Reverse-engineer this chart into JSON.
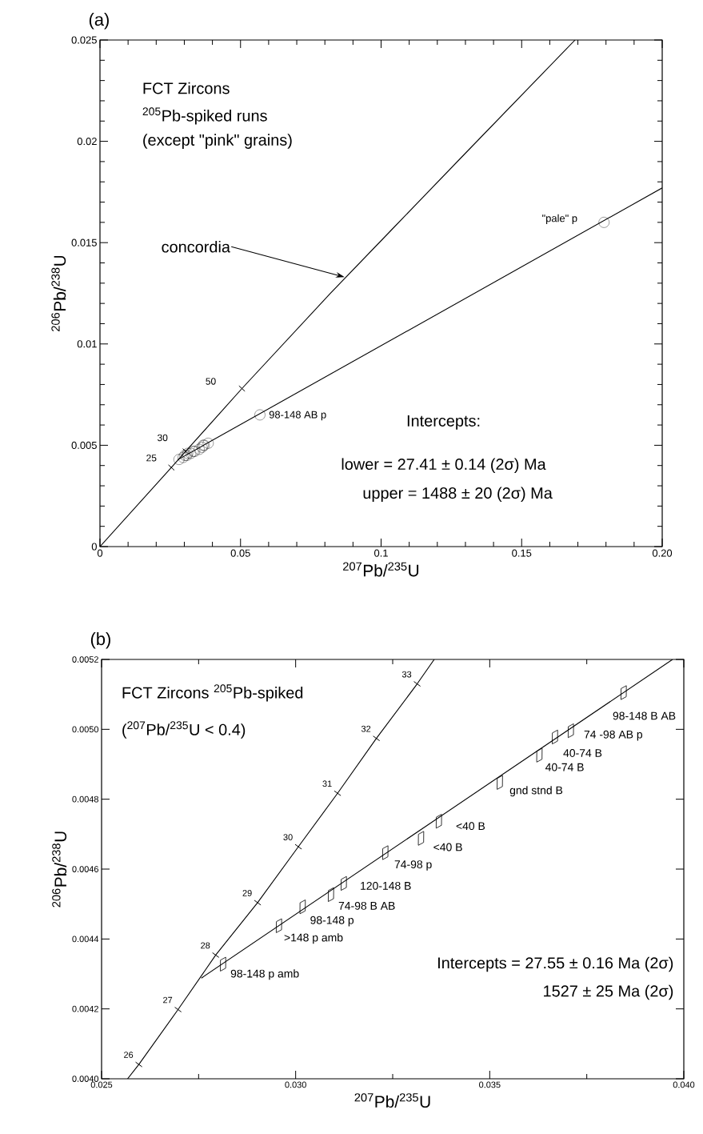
{
  "chart_data": [
    {
      "type": "scatter",
      "title": "(a)",
      "xlabel": "$^{207}$Pb/$^{235}$U",
      "ylabel": "$^{206}$Pb/$^{238}$U",
      "xlim": [
        0,
        0.2
      ],
      "ylim": [
        0,
        0.025
      ],
      "xticks": [
        0,
        0.05,
        0.1,
        0.15,
        {
          "value": 0.2,
          "label": "0.20"
        }
      ],
      "yticks": [
        0,
        0.005,
        0.01,
        0.015,
        0.02,
        0.025
      ],
      "series": [
        {
          "type": "line",
          "color": "#000000",
          "x": [
            0,
            0.0254,
            0.0305,
            0.0505,
            0.082,
            0.1035,
            0.1306,
            0.169
          ],
          "values": [
            0,
            0.0039,
            0.0047,
            0.0078,
            0.0125,
            0.0156,
            0.0195,
            0.025
          ]
        },
        {
          "type": "line",
          "color": "#000000",
          "x": [
            0.0276,
            0.2
          ],
          "values": [
            0.00428,
            0.0177
          ]
        },
        {
          "marker": "cross",
          "color": "#000000",
          "x": [
            0.0254,
            0.0305,
            0.0505
          ],
          "values": [
            0.0039,
            0.0047,
            0.0078
          ]
        },
        {
          "marker": "circle",
          "color": "#000000",
          "x": [
            0.0281,
            0.0296,
            0.0302,
            0.0309,
            0.0312,
            0.0323,
            0.0332,
            0.0337,
            0.0353,
            0.0363,
            0.0367,
            0.0371,
            0.0385,
            0.0569,
            0.1793
          ],
          "values": [
            0.0043,
            0.0044,
            0.0045,
            0.0045,
            0.0046,
            0.0046,
            0.0047,
            0.0047,
            0.0048,
            0.0049,
            0.005,
            0.005,
            0.0051,
            0.0065,
            0.016
          ]
        }
      ],
      "annotations": [
        "FCT Zircons",
        "$^{205}$Pb-spiked runs",
        "(except \"pink\" grains)",
        {
          "text": "concordia",
          "x": 0.087,
          "y": 0.0133
        },
        "Intercepts:",
        "lower = 27.41 ± 0.14 (2σ) Ma",
        "upper = 1488 ± 20 (2σ) Ma",
        {
          "text": "25",
          "x": 0.0254,
          "y": 0.0039
        },
        {
          "text": "30",
          "x": 0.0305,
          "y": 0.0047
        },
        {
          "text": "50",
          "x": 0.0505,
          "y": 0.0078
        },
        {
          "text": "98-148 AB p",
          "x": 0.0569,
          "y": 0.0065
        },
        {
          "text": "\"pale\" p",
          "x": 0.1793,
          "y": 0.016
        }
      ]
    },
    {
      "type": "scatter",
      "title": "(b)",
      "xlabel": "$^{207}$Pb/$^{235}$U",
      "ylabel": "$^{206}$Pb/$^{238}$U",
      "xlim": [
        0.025,
        0.04
      ],
      "ylim": [
        0.004,
        0.0052
      ],
      "xticks": [
        0.025,
        {
          "value": 0.03,
          "label": "0.030"
        },
        0.035,
        {
          "value": 0.04,
          "label": "0.040"
        }
      ],
      "yticks": [
        {
          "value": 0.004,
          "label": "0.0040"
        },
        0.0042,
        0.0044,
        0.0046,
        0.0048,
        {
          "value": 0.005,
          "label": "0.0050"
        },
        0.0052
      ],
      "series": [
        {
          "type": "line",
          "color": "#000000",
          "x": [
            0.02567,
            0.02596,
            0.02697,
            0.02794,
            0.02902,
            0.03007,
            0.03108,
            0.03208,
            0.03313,
            0.03357
          ],
          "values": [
            0.004,
            0.004041,
            0.004198,
            0.004354,
            0.004504,
            0.004664,
            0.004817,
            0.004974,
            0.00513,
            0.0052
          ]
        },
        {
          "type": "line",
          "color": "#000000",
          "x": [
            0.02757,
            0.03971
          ],
          "values": [
            0.004288,
            0.0052
          ]
        },
        {
          "marker": "cross",
          "color": "#000000",
          "x": [
            0.02596,
            0.02697,
            0.02794,
            0.02902,
            0.03007,
            0.03108,
            0.03208,
            0.03313
          ],
          "values": [
            0.004041,
            0.004198,
            0.004354,
            0.004504,
            0.004664,
            0.004817,
            0.004974,
            0.00513
          ]
        },
        {
          "marker": "diamond",
          "color": "#000000",
          "x": [
            0.02813,
            0.02957,
            0.03018,
            0.03091,
            0.03124,
            0.03231,
            0.03323,
            0.03369,
            0.03526,
            0.03628,
            0.03668,
            0.03709,
            0.03845
          ],
          "values": [
            0.004328,
            0.004438,
            0.004492,
            0.004527,
            0.004559,
            0.004647,
            0.004688,
            0.004737,
            0.004848,
            0.004926,
            0.004978,
            0.004996,
            0.005105
          ]
        }
      ],
      "annotations": [
        "FCT Zircons  $^{205}$Pb-spiked",
        "($^{207}$Pb/$^{235}$U < 0.4)",
        "Intercepts  =  27.55 ± 0.16 Ma (2σ)",
        "1527 ± 25 Ma (2σ)",
        {
          "text": "26",
          "x": 0.02596,
          "y": 0.004041
        },
        {
          "text": "27",
          "x": 0.02697,
          "y": 0.004198
        },
        {
          "text": "28",
          "x": 0.02794,
          "y": 0.004354
        },
        {
          "text": "29",
          "x": 0.02902,
          "y": 0.004504
        },
        {
          "text": "30",
          "x": 0.03007,
          "y": 0.004664
        },
        {
          "text": "31",
          "x": 0.03108,
          "y": 0.004817
        },
        {
          "text": "32",
          "x": 0.03208,
          "y": 0.004974
        },
        {
          "text": "33",
          "x": 0.03313,
          "y": 0.00513
        },
        {
          "text": "98-148 p amb",
          "x": 0.02813,
          "y": 0.004328
        },
        {
          "text": ">148 p amb",
          "x": 0.02957,
          "y": 0.004438
        },
        {
          "text": "98-148 p",
          "x": 0.03018,
          "y": 0.004492
        },
        {
          "text": "74-98 B AB",
          "x": 0.03091,
          "y": 0.004527
        },
        {
          "text": "120-148 B",
          "x": 0.03124,
          "y": 0.004559
        },
        {
          "text": "74-98 p",
          "x": 0.03231,
          "y": 0.004647
        },
        {
          "text": "<40 B",
          "x": 0.03323,
          "y": 0.004688
        },
        {
          "text": "<40 B",
          "x": 0.03369,
          "y": 0.004737
        },
        {
          "text": "gnd stnd B",
          "x": 0.03526,
          "y": 0.004848
        },
        {
          "text": "40-74 B",
          "x": 0.03628,
          "y": 0.004926
        },
        {
          "text": "40-74 B",
          "x": 0.03668,
          "y": 0.004978
        },
        {
          "text": "74 -98 AB p",
          "x": 0.03709,
          "y": 0.004996
        },
        {
          "text": "98-148 B AB",
          "x": 0.03845,
          "y": 0.005105
        }
      ]
    }
  ]
}
